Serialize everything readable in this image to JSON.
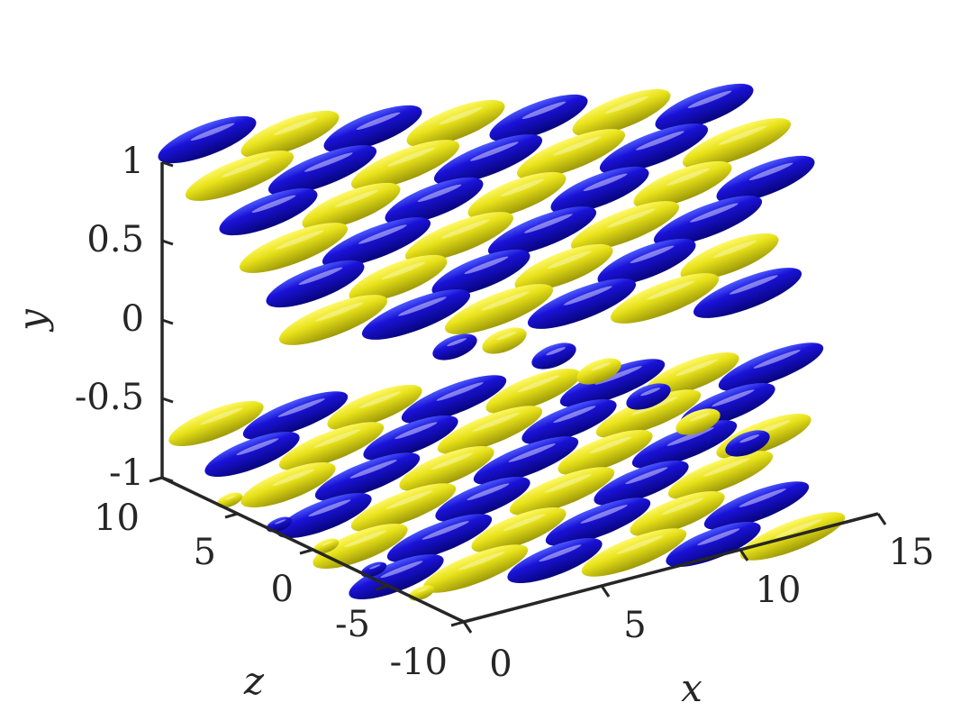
{
  "chart_data": {
    "type": "isosurface-3d",
    "xlabel": "x",
    "ylabel": "y",
    "zlabel": "z",
    "xlim": [
      0,
      15
    ],
    "ylim": [
      -1,
      1
    ],
    "zlim": [
      -10,
      10
    ],
    "xticks": [
      "0",
      "5",
      "10",
      "15"
    ],
    "yticks": [
      "-1",
      "-0.5",
      "0",
      "0.5",
      "1"
    ],
    "zticks": [
      "-10",
      "-5",
      "0",
      "5",
      "10"
    ],
    "grid": false,
    "series": [
      {
        "colour": "#1a10c8"
      },
      {
        "colour": "#e8e21a"
      }
    ]
  }
}
